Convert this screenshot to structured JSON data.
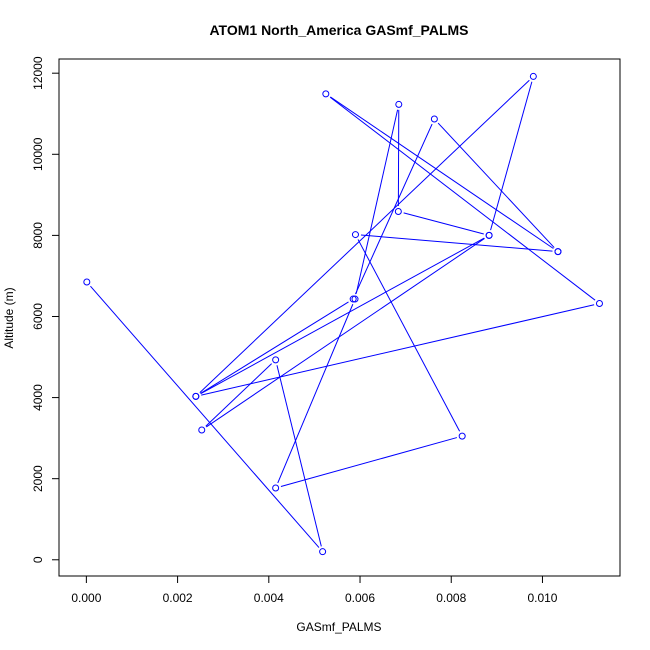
{
  "chart_data": {
    "type": "line",
    "title": "ATOM1 North_America GASmf_PALMS",
    "xlabel": "GASmf_PALMS",
    "ylabel": "Altitude (m)",
    "xlim": [
      -0.0006,
      0.0117
    ],
    "ylim": [
      -400,
      12350
    ],
    "x_ticks": [
      0.0,
      0.002,
      0.004,
      0.006,
      0.008,
      0.01
    ],
    "x_tick_labels": [
      "0.000",
      "0.002",
      "0.004",
      "0.006",
      "0.008",
      "0.010"
    ],
    "y_ticks": [
      0,
      2000,
      4000,
      6000,
      8000,
      10000,
      12000
    ],
    "y_tick_labels": [
      "0",
      "2000",
      "4000",
      "6000",
      "8000",
      "10000",
      "12000"
    ],
    "grid": false,
    "legend": false,
    "series": [
      {
        "color": "#0000ff",
        "marker": "open-circle",
        "x": [
          1e-05,
          0.00518,
          0.00415,
          0.00253,
          0.00883,
          0.0024,
          0.0098,
          0.00883,
          0.00684,
          0.00685,
          0.00589,
          0.00415,
          0.00824,
          0.0059,
          0.01034,
          0.00525,
          0.01125,
          0.0024,
          0.00585,
          0.00763,
          0.01034
        ],
        "y": [
          6850,
          200,
          4930,
          3200,
          8000,
          4030,
          11920,
          8000,
          8590,
          11230,
          6430,
          1770,
          3050,
          8020,
          7600,
          11490,
          6320,
          4030,
          6430,
          10870,
          7600
        ]
      }
    ]
  }
}
